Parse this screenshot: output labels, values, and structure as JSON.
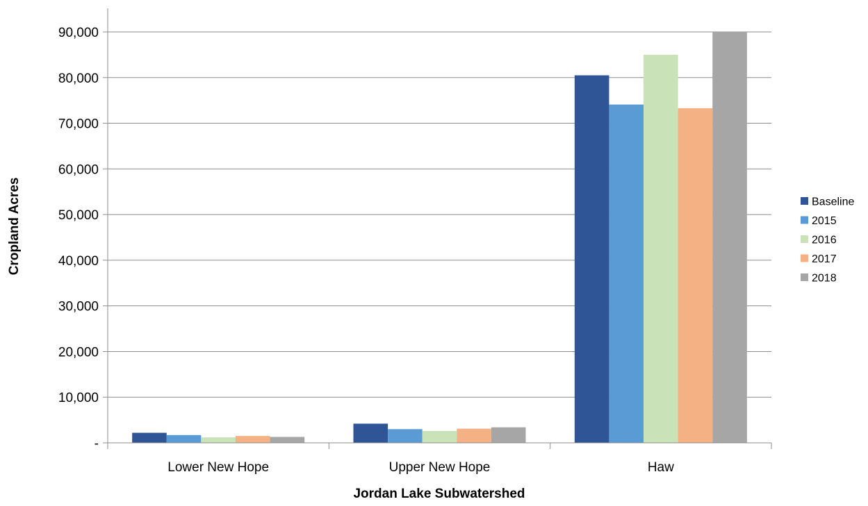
{
  "chart_data": {
    "type": "bar",
    "title": "",
    "xlabel": "Jordan Lake Subwatershed",
    "ylabel": "Cropland Acres",
    "categories": [
      "Lower New Hope",
      "Upper New Hope",
      "Haw"
    ],
    "series": [
      {
        "name": "Baseline",
        "color": "#2f5597",
        "values": [
          2200,
          4200,
          80500
        ]
      },
      {
        "name": "2015",
        "color": "#5b9bd5",
        "values": [
          1700,
          3000,
          74100
        ]
      },
      {
        "name": "2016",
        "color": "#c9e2b8",
        "values": [
          1200,
          2600,
          85000
        ]
      },
      {
        "name": "2017",
        "color": "#f4b183",
        "values": [
          1500,
          3100,
          73300
        ]
      },
      {
        "name": "2018",
        "color": "#a6a6a6",
        "values": [
          1300,
          3400,
          90100
        ]
      }
    ],
    "ylim": [
      0,
      90000
    ],
    "yticks": [
      {
        "value": 0,
        "label": "-"
      },
      {
        "value": 10000,
        "label": "10,000"
      },
      {
        "value": 20000,
        "label": "20,000"
      },
      {
        "value": 30000,
        "label": "30,000"
      },
      {
        "value": 40000,
        "label": "40,000"
      },
      {
        "value": 50000,
        "label": "50,000"
      },
      {
        "value": 60000,
        "label": "60,000"
      },
      {
        "value": 70000,
        "label": "70,000"
      },
      {
        "value": 80000,
        "label": "80,000"
      },
      {
        "value": 90000,
        "label": "90,000"
      }
    ],
    "grid": true,
    "legend_position": "right"
  }
}
